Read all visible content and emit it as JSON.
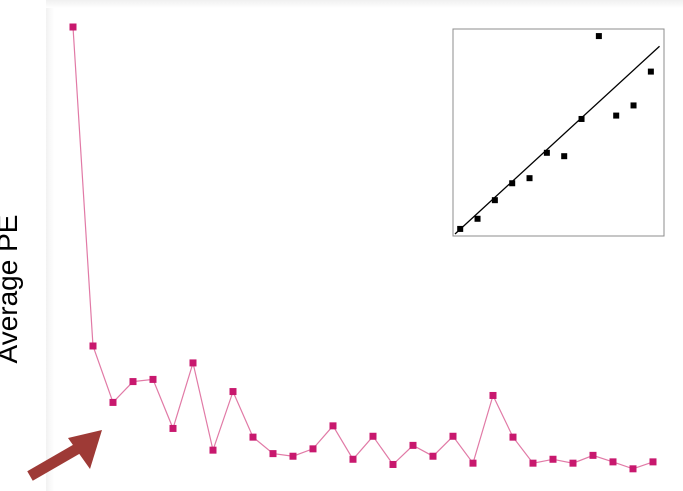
{
  "chart_data": [
    {
      "type": "line",
      "title": "",
      "xlabel": "",
      "ylabel": "Average PE",
      "grid": false,
      "marker": "square",
      "colors": {
        "series": "#C8186E",
        "line": "#E17AA6"
      },
      "x": [
        1,
        2,
        3,
        4,
        5,
        6,
        7,
        8,
        9,
        10,
        11,
        12,
        13,
        14,
        15,
        16,
        17,
        18,
        19,
        20,
        21,
        22,
        23,
        24,
        25,
        26,
        27,
        28,
        29,
        30
      ],
      "ylim": [
        0,
        100
      ],
      "series": [
        {
          "name": "",
          "values": [
            100,
            26.5,
            13.5,
            18.3,
            18.8,
            7.5,
            22.6,
            2.5,
            16.0,
            5.5,
            1.7,
            1.1,
            2.8,
            8.1,
            0.4,
            5.7,
            -0.8,
            3.6,
            1.1,
            5.7,
            -0.5,
            15.1,
            5.5,
            -0.5,
            0.4,
            -0.5,
            1.3,
            -0.2,
            -1.8,
            -0.2
          ]
        }
      ]
    },
    {
      "type": "scatter",
      "title": "",
      "xlabel": "",
      "ylabel": "",
      "grid": false,
      "colors": {
        "points": "#000000",
        "fit_line": "#000000"
      },
      "xlim": [
        0,
        12
      ],
      "ylim": [
        0,
        12
      ],
      "points": [
        {
          "x": 0.3,
          "y": 0.3
        },
        {
          "x": 1.3,
          "y": 0.9
        },
        {
          "x": 2.3,
          "y": 2.0
        },
        {
          "x": 3.3,
          "y": 3.0
        },
        {
          "x": 4.3,
          "y": 3.3
        },
        {
          "x": 5.3,
          "y": 4.8
        },
        {
          "x": 6.3,
          "y": 4.6
        },
        {
          "x": 7.3,
          "y": 6.8
        },
        {
          "x": 8.3,
          "y": 11.7
        },
        {
          "x": 9.3,
          "y": 7.0
        },
        {
          "x": 10.3,
          "y": 7.6
        },
        {
          "x": 11.3,
          "y": 9.6
        }
      ],
      "fit_line": {
        "x": [
          0,
          11.8
        ],
        "y": [
          0,
          11.1
        ]
      }
    }
  ],
  "arrow": {
    "color": "#9E3A36",
    "direction": "up-right"
  }
}
